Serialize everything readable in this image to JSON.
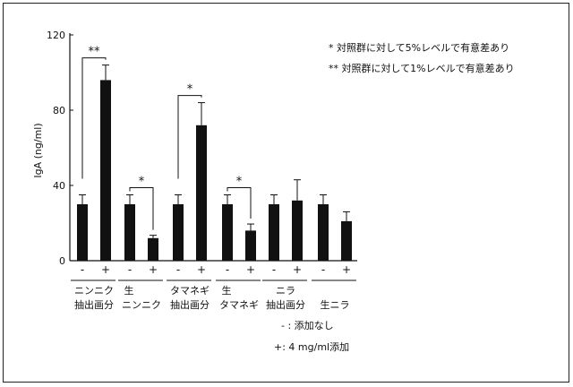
{
  "chart_data": {
    "type": "bar",
    "ylabel": "IgA (ng/ml)",
    "ylim": [
      0,
      120
    ],
    "yticks": [
      0,
      40,
      80,
      120
    ],
    "groups": [
      {
        "label_lines": [
          "ニンニク",
          "抽出画分"
        ],
        "values": [
          30,
          96
        ],
        "errors": [
          5,
          8
        ]
      },
      {
        "label_lines": [
          "生",
          "ニンニク"
        ],
        "values": [
          30,
          12
        ],
        "errors": [
          5,
          1.5
        ]
      },
      {
        "label_lines": [
          "タマネギ",
          "抽出画分"
        ],
        "values": [
          30,
          72
        ],
        "errors": [
          5,
          12
        ]
      },
      {
        "label_lines": [
          "生",
          "タマネギ"
        ],
        "values": [
          30,
          16
        ],
        "errors": [
          5,
          3.5
        ]
      },
      {
        "label_lines": [
          "ニラ",
          "抽出画分"
        ],
        "values": [
          30,
          32
        ],
        "errors": [
          5,
          11
        ]
      },
      {
        "label_lines": [
          "",
          "生ニラ"
        ],
        "values": [
          30,
          21
        ],
        "errors": [
          5,
          5
        ]
      }
    ],
    "treatment_labels": [
      "-",
      "+"
    ],
    "significance": [
      {
        "group": 0,
        "mark": "**"
      },
      {
        "group": 1,
        "mark": "*"
      },
      {
        "group": 2,
        "mark": "*"
      },
      {
        "group": 3,
        "mark": "*"
      }
    ],
    "legend": [
      "* 対照群に対して5%レベルで有意差あり",
      "** 対照群に対して1%レベルで有意差あり"
    ],
    "key": [
      "- : 添加なし",
      "+:  4 mg/ml添加"
    ],
    "bar_color": "#111111"
  }
}
